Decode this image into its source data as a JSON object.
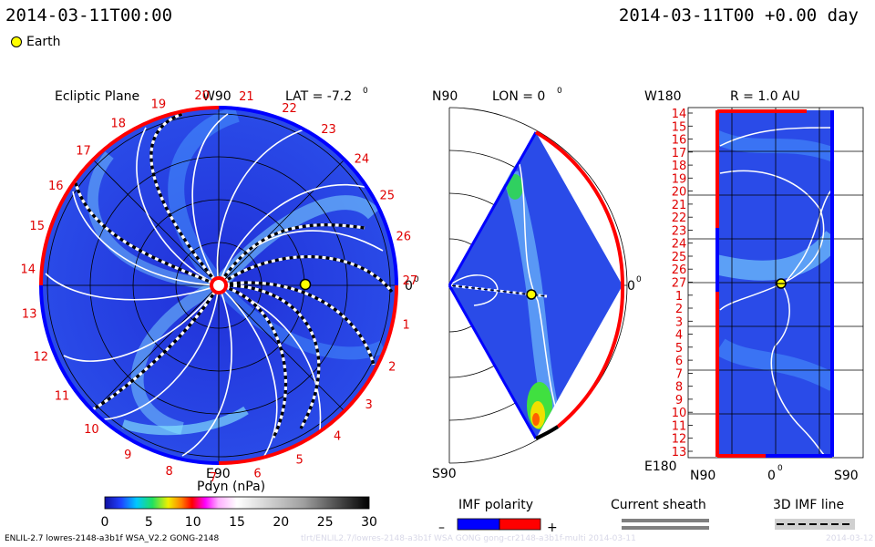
{
  "header": {
    "timestamp_left": "2014-03-11T00:00",
    "timestamp_right": "2014-03-11T00 +0.00 day",
    "legend_earth": "Earth"
  },
  "colors": {
    "field_blue": "#2a3fe0",
    "positive_red": "#ff0000",
    "negative_blue": "#0000ff",
    "earth_yellow": "#ffff00",
    "sheath_gray": "#808080"
  },
  "chart_data": [
    {
      "type": "heatmap",
      "title": "Ecliptic Plane",
      "subtitle": "LAT = -7.2",
      "top_label": "W90",
      "bottom_label": "E90",
      "right_label": "0",
      "rotation_ticks": [
        "20",
        "21",
        "22",
        "23",
        "24",
        "25",
        "26",
        "27",
        "1",
        "2",
        "3",
        "4",
        "5",
        "6",
        "7",
        "8",
        "9",
        "10",
        "11",
        "12",
        "13",
        "14",
        "15",
        "16",
        "17",
        "18",
        "19"
      ],
      "earth_position_au": 1.0
    },
    {
      "type": "heatmap",
      "title": "LON = 0",
      "top_label": "N90",
      "bottom_label": "S90",
      "right_label": "0"
    },
    {
      "type": "heatmap",
      "title": "R = 1.0 AU",
      "top_label": "W180",
      "bottom_label": "E180",
      "x_ticks": [
        "N90",
        "0",
        "S90"
      ],
      "y_ticks": [
        "14",
        "15",
        "16",
        "17",
        "18",
        "19",
        "20",
        "21",
        "22",
        "23",
        "24",
        "25",
        "26",
        "27",
        "1",
        "2",
        "3",
        "4",
        "5",
        "6",
        "7",
        "8",
        "9",
        "10",
        "11",
        "12",
        "13"
      ]
    },
    {
      "type": "table",
      "title": "Pdyn (nPa)",
      "colorbar_ticks": [
        "0",
        "5",
        "10",
        "15",
        "20",
        "25",
        "30"
      ],
      "range": [
        0,
        30
      ]
    }
  ],
  "legends": {
    "imf_polarity": "IMF polarity",
    "minus": "–",
    "plus": "+",
    "current_sheath": "Current sheath",
    "imf_line": "3D IMF line"
  },
  "footer": {
    "model": "ENLIL-2.7 lowres-2148-a3b1f WSA_V2.2 GONG-2148",
    "faded": "tlrt/ENLIL2.7/lowres-2148-a3b1f WSA GONG gong-cr2148-a3b1f-multi 2014-03-11",
    "faded_right": "2014-03-12"
  }
}
